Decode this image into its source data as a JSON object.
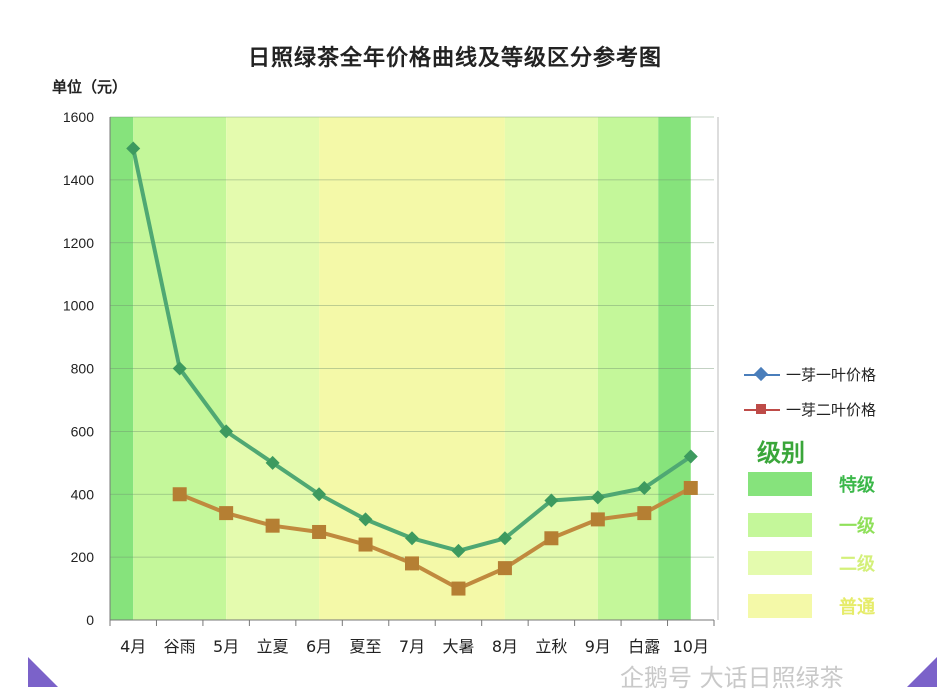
{
  "chart_data": {
    "type": "line",
    "title": "日照绿茶全年价格曲线及等级区分参考图",
    "ylabel": "单位（元）",
    "ylim": [
      0,
      1600
    ],
    "yticks": [
      0,
      200,
      400,
      600,
      800,
      1000,
      1200,
      1400,
      1600
    ],
    "grid": true,
    "legend_position": "right",
    "categories": [
      "4月",
      "谷雨",
      "5月",
      "立夏",
      "6月",
      "夏至",
      "7月",
      "大暑",
      "8月",
      "立秋",
      "9月",
      "白露",
      "10月"
    ],
    "series": [
      {
        "name": "一芽一叶价格",
        "marker": "diamond",
        "color": "#4a7ebb",
        "values": [
          1500,
          800,
          600,
          500,
          400,
          320,
          260,
          220,
          260,
          380,
          390,
          420,
          520
        ]
      },
      {
        "name": "一芽二叶价格",
        "marker": "square",
        "color": "#be4b48",
        "values": [
          null,
          400,
          340,
          300,
          280,
          240,
          180,
          100,
          165,
          260,
          320,
          340,
          420
        ]
      }
    ],
    "grade_bands": [
      {
        "from": 0,
        "to": 0.5,
        "grade": "特级"
      },
      {
        "from": 0.5,
        "to": 2.5,
        "grade": "一级"
      },
      {
        "from": 2.5,
        "to": 4.5,
        "grade": "二级"
      },
      {
        "from": 4.5,
        "to": 8.5,
        "grade": "普通"
      },
      {
        "from": 8.5,
        "to": 10.5,
        "grade": "二级"
      },
      {
        "from": 10.5,
        "to": 11.8,
        "grade": "一级"
      },
      {
        "from": 11.8,
        "to": 12.5,
        "grade": "特级"
      }
    ]
  },
  "legend": {
    "grade_title": "级别",
    "grades": [
      {
        "label": "特级",
        "color": "#86e37c",
        "text_color": "#3cb84a"
      },
      {
        "label": "一级",
        "color": "#c4f79a",
        "text_color": "#8fe05a"
      },
      {
        "label": "二级",
        "color": "#e4fbae",
        "text_color": "#d4f07a"
      },
      {
        "label": "普通",
        "color": "#f4f9a8",
        "text_color": "#e6ec6a"
      }
    ]
  },
  "colors": {
    "line1_stroke": "#4fa873",
    "line1_marker": "#3d9a5f",
    "line2_stroke": "#c08a3e",
    "line2_marker": "#b57f33"
  },
  "watermark": "企鹅号 大话日照绿茶"
}
